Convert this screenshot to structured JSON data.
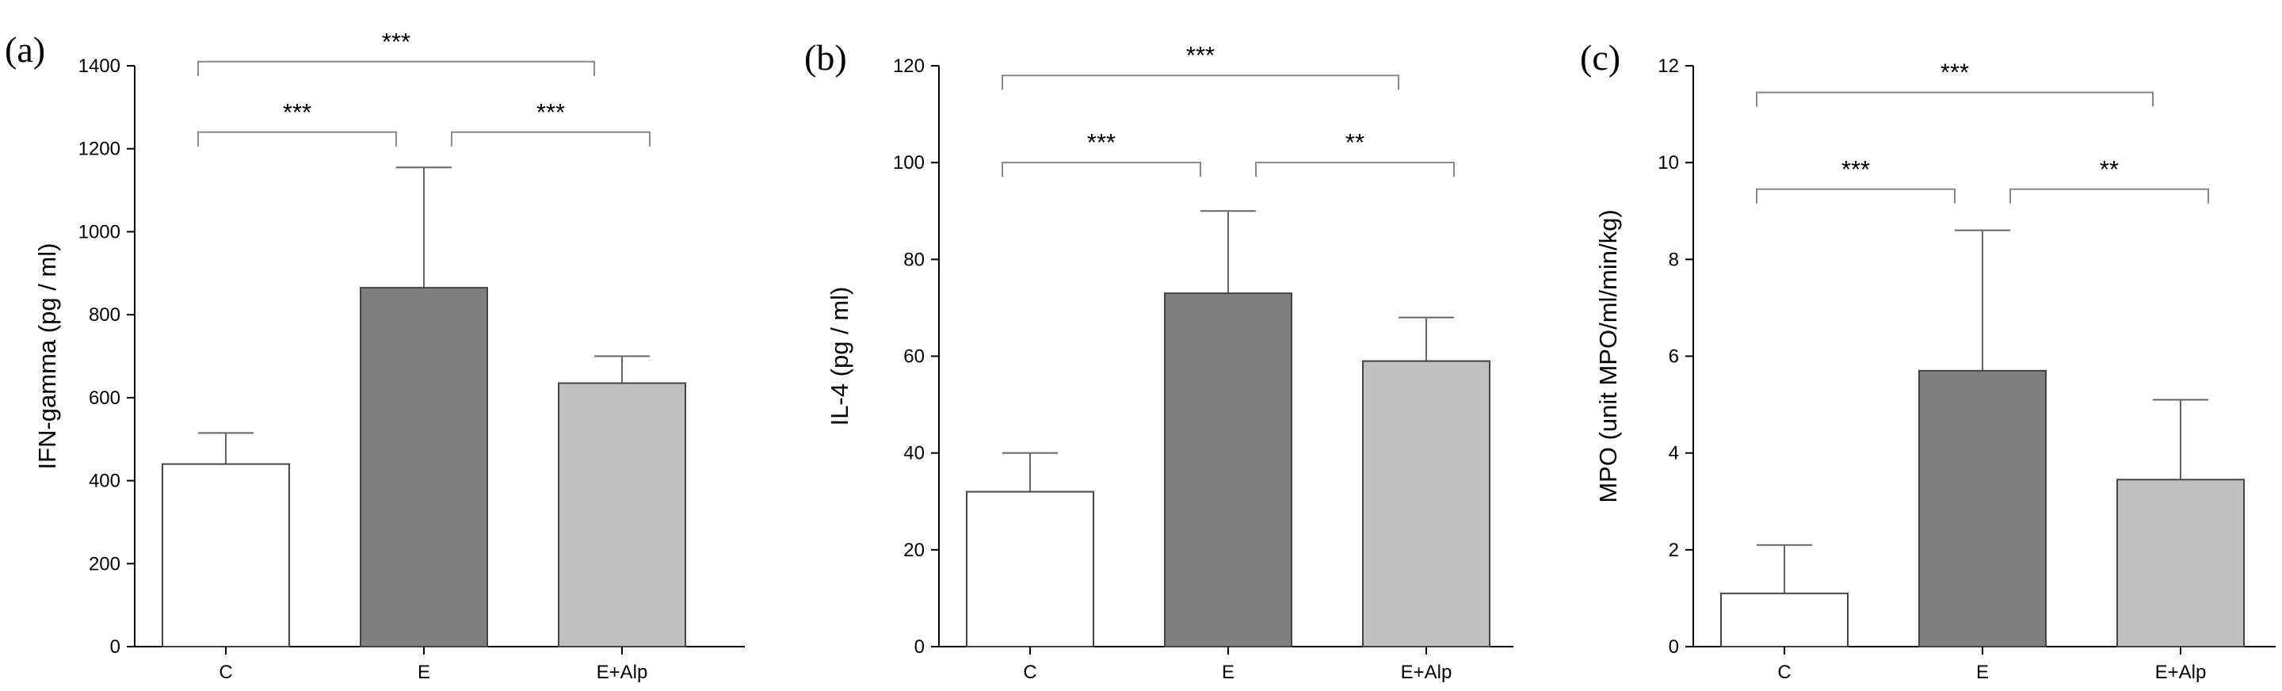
{
  "chart_data": [
    {
      "panel_letter": "(a)",
      "type": "bar",
      "categories": [
        "C",
        "E",
        "E+Alp"
      ],
      "values": [
        440,
        865,
        635
      ],
      "errors": [
        75,
        290,
        65
      ],
      "ylabel": "IFN-gamma (pg / ml)",
      "ylim": [
        0,
        1400
      ],
      "yticks": [
        "0",
        "200",
        "400",
        "600",
        "800",
        "1000",
        "1200",
        "1400"
      ],
      "bar_colors": [
        "#ffffff",
        "#7f7f7f",
        "#c0c0c0"
      ],
      "significance": [
        {
          "from": 0,
          "to": 1,
          "label": "***",
          "level": 1240
        },
        {
          "from": 1,
          "to": 2,
          "label": "***",
          "level": 1240
        },
        {
          "from": 0,
          "to": 2,
          "label": "***",
          "level": 1410
        }
      ]
    },
    {
      "panel_letter": "(b)",
      "type": "bar",
      "categories": [
        "C",
        "E",
        "E+Alp"
      ],
      "values": [
        32,
        73,
        59
      ],
      "errors": [
        8,
        17,
        9
      ],
      "ylabel": "IL-4 (pg / ml)",
      "ylim": [
        0,
        120
      ],
      "yticks": [
        "0",
        "20",
        "40",
        "60",
        "80",
        "100",
        "120"
      ],
      "bar_colors": [
        "#ffffff",
        "#7f7f7f",
        "#c0c0c0"
      ],
      "significance": [
        {
          "from": 0,
          "to": 1,
          "label": "***",
          "level": 100
        },
        {
          "from": 1,
          "to": 2,
          "label": "**",
          "level": 100
        },
        {
          "from": 0,
          "to": 2,
          "label": "***",
          "level": 118
        }
      ]
    },
    {
      "panel_letter": "(c)",
      "type": "bar",
      "categories": [
        "C",
        "E",
        "E+Alp"
      ],
      "values": [
        1.1,
        5.7,
        3.45
      ],
      "errors": [
        1.0,
        2.9,
        1.65
      ],
      "ylabel": "MPO (unit MPO/ml/min/kg)",
      "ylim": [
        0,
        12
      ],
      "yticks": [
        "0",
        "2",
        "4",
        "6",
        "8",
        "10",
        "12"
      ],
      "bar_colors": [
        "#ffffff",
        "#7f7f7f",
        "#c0c0c0"
      ],
      "significance": [
        {
          "from": 0,
          "to": 1,
          "label": "***",
          "level": 9.45
        },
        {
          "from": 1,
          "to": 2,
          "label": "**",
          "level": 9.45
        },
        {
          "from": 0,
          "to": 2,
          "label": "***",
          "level": 11.45
        }
      ]
    }
  ]
}
